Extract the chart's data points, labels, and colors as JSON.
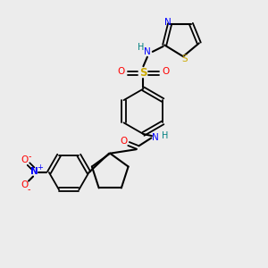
{
  "bg_color": "#ececec",
  "atom_colors": {
    "N": "#0000ff",
    "O": "#ff0000",
    "S_sulfonyl": "#ccaa00",
    "S_thiazole": "#ccaa00",
    "H": "#008080",
    "C": "#000000"
  }
}
